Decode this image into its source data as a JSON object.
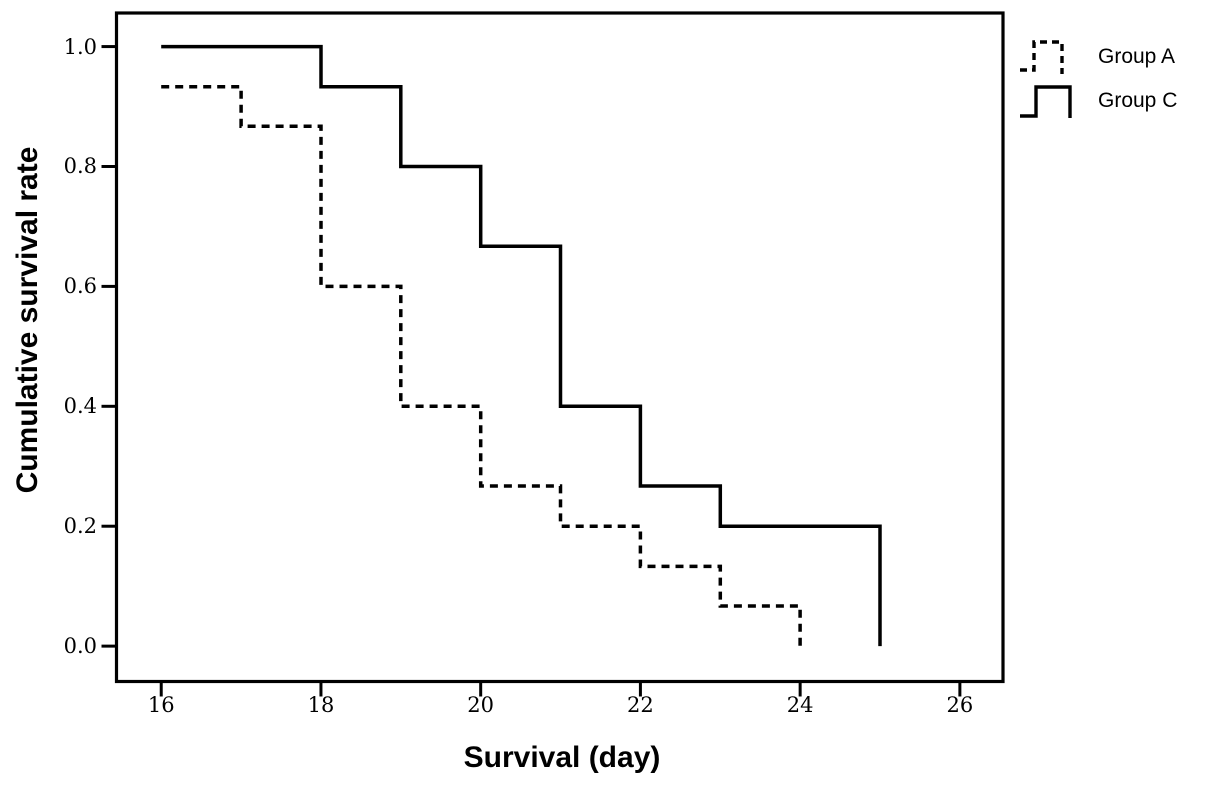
{
  "chart_data": {
    "type": "line",
    "subtype": "step-survival",
    "title": "",
    "xlabel": "Survival (day)",
    "ylabel": "Cumulative survival rate",
    "x_ticks": [
      "16",
      "18",
      "20",
      "22",
      "24",
      "26"
    ],
    "y_ticks": [
      "0.0",
      "0.2",
      "0.4",
      "0.6",
      "0.8",
      "1.0"
    ],
    "xlim": [
      15.44,
      26.54
    ],
    "ylim": [
      -0.059,
      1.056
    ],
    "grid": false,
    "legend_position": "outside-top-right",
    "line_color": "#000000",
    "background_color": "#ffffff",
    "series": [
      {
        "name": "Group A",
        "line": "dashed",
        "color": "#000000",
        "levels": [
          [
            16,
            0.933
          ],
          [
            17,
            0.867
          ],
          [
            18,
            0.6
          ],
          [
            19,
            0.4
          ],
          [
            20,
            0.267
          ],
          [
            21,
            0.2
          ],
          [
            22,
            0.133
          ],
          [
            23,
            0.067
          ]
        ],
        "end": [
          24,
          0.0
        ]
      },
      {
        "name": "Group C",
        "line": "solid",
        "color": "#000000",
        "levels": [
          [
            16,
            1.0
          ],
          [
            18,
            0.933
          ],
          [
            19,
            0.8
          ],
          [
            20,
            0.667
          ],
          [
            21,
            0.4
          ],
          [
            22,
            0.267
          ],
          [
            23,
            0.2
          ]
        ],
        "end": [
          25,
          0.0
        ]
      }
    ]
  }
}
